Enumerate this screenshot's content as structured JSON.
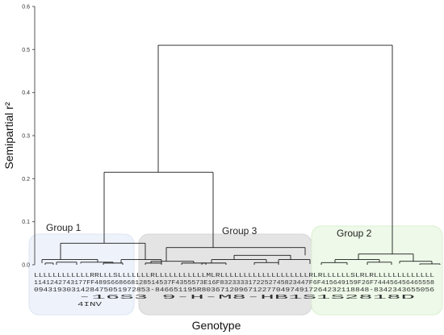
{
  "chart_data": {
    "type": "dendrogram",
    "xlabel": "Genotype",
    "ylabel": "Semipartial r²",
    "ylim": [
      0,
      0.6
    ],
    "yticks": [
      "0.0",
      "0.1",
      "0.2",
      "0.3",
      "0.4",
      "0.5",
      "0.6"
    ],
    "grid": false,
    "colors": {
      "group1": "#eef3fb",
      "group3": "#e4e4e4",
      "group2": "#eef9e9",
      "line": "#1a1a1a"
    },
    "groups": [
      {
        "name": "Group 1",
        "merge_height": 0.05
      },
      {
        "name": "Group 3",
        "merge_height": 0.04
      },
      {
        "name": "Group 2",
        "merge_height": 0.025
      }
    ],
    "merges": [
      {
        "between": [
          "Group 1",
          "Group 3"
        ],
        "height": 0.215
      },
      {
        "between": [
          "Group 1 + Group 3",
          "Group 2"
        ],
        "height": 0.51
      }
    ],
    "genotype_label_rows": [
      "LLLLLLLLLLLLRRLLLSLLLLLLLRLLLLLLLLLLLMLRLLLLLLLLLLLLLLLLLLLRLRLLLLLLSLRLRLLLLLLLLLLLLL",
      "1141242743177FF489S668668128514537F4355573E16F8323333172252745823447F6F415649159F26F744456456465558",
      "0943193031428475051972853-846651195R803671209671227704974917264232118848-8342343655056",
      "-16S3 9-H-M8-HB1S1S2818D",
      "4INV"
    ]
  }
}
